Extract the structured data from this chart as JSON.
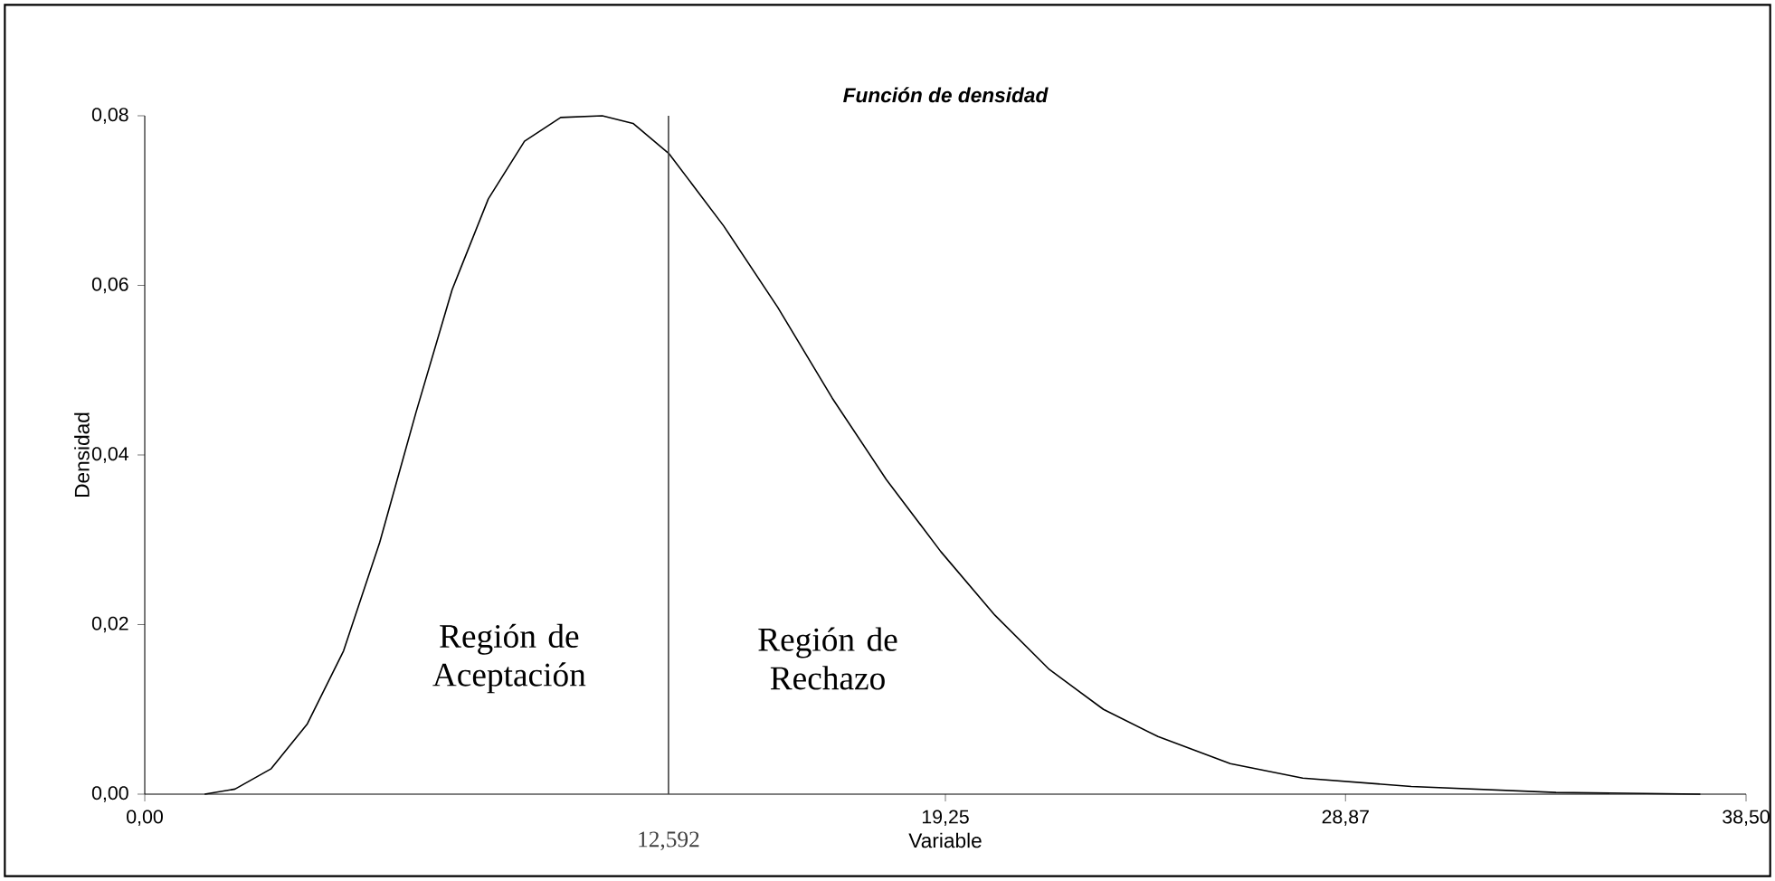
{
  "chart_data": {
    "type": "line",
    "title": "Función de densidad",
    "xlabel": "Variable",
    "ylabel": "Densidad",
    "xlim": [
      0,
      38.5
    ],
    "ylim": [
      0,
      0.08
    ],
    "xticks": [
      {
        "value": 0,
        "label": "0,00"
      },
      {
        "value": 19.25,
        "label": "19,25"
      },
      {
        "value": 28.87,
        "label": "28,87"
      },
      {
        "value": 38.5,
        "label": "38,50"
      }
    ],
    "yticks": [
      {
        "value": 0,
        "label": "0,00"
      },
      {
        "value": 0.02,
        "label": "0,02"
      },
      {
        "value": 0.04,
        "label": "0,04"
      },
      {
        "value": 0.06,
        "label": "0,06"
      },
      {
        "value": 0.08,
        "label": "0,08"
      }
    ],
    "marker": "none",
    "line_style": "solid",
    "series": [
      {
        "color": "#000000",
        "x": [
          1.44,
          2.17,
          3.04,
          3.91,
          4.78,
          5.65,
          6.52,
          7.39,
          8.26,
          9.13,
          10.0,
          11.0,
          11.74,
          12.61,
          13.92,
          15.22,
          16.53,
          17.83,
          19.14,
          20.44,
          21.75,
          23.05,
          24.36,
          26.1,
          27.84,
          30.45,
          33.93,
          37.4
        ],
        "values": [
          0,
          0.0006,
          0.003,
          0.0083,
          0.0169,
          0.0297,
          0.045,
          0.0595,
          0.0702,
          0.077,
          0.0798,
          0.08,
          0.0791,
          0.0755,
          0.067,
          0.0574,
          0.0467,
          0.0371,
          0.0286,
          0.0211,
          0.0147,
          0.01,
          0.0068,
          0.0036,
          0.0019,
          0.0009,
          0.0002,
          0
        ]
      }
    ],
    "ref_lines": [
      {
        "axis": "x",
        "value": 12.592,
        "label": "12,592",
        "color": "#404040"
      }
    ],
    "annotations": [
      "Región de Aceptación",
      "Región de Rechazo"
    ]
  }
}
